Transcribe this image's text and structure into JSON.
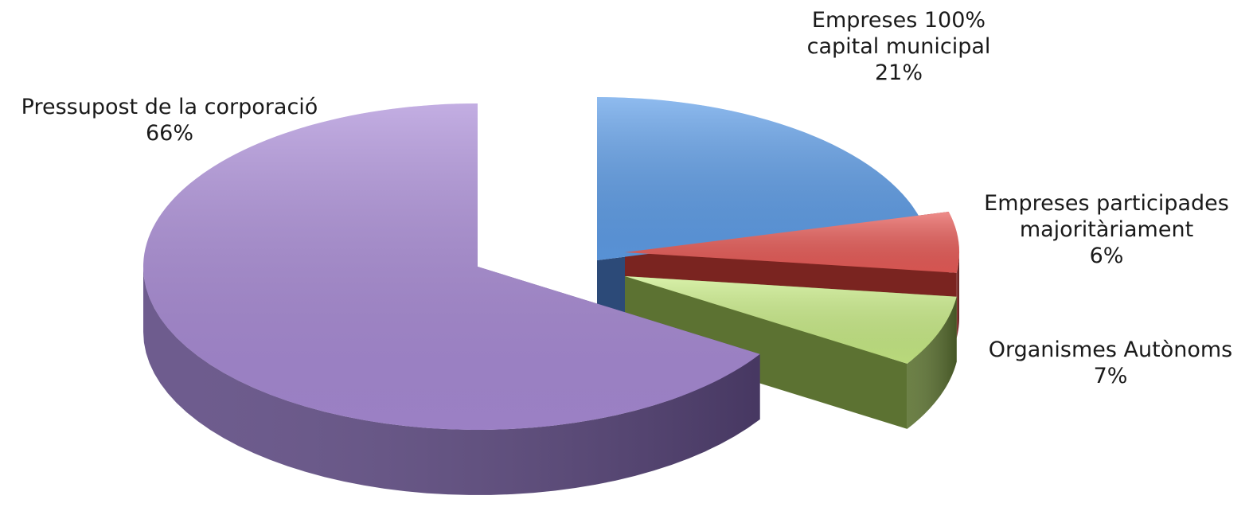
{
  "chart_data": {
    "type": "pie",
    "style": "3d-exploded",
    "title": "",
    "slices": [
      {
        "label_lines": [
          "Empreses 100%",
          "capital municipal"
        ],
        "value": 21,
        "value_label": "21%",
        "color": "#5f9ee8",
        "side_color": "#2c4a78"
      },
      {
        "label_lines": [
          "Empreses participades",
          "majoritàriament"
        ],
        "value": 6,
        "value_label": "6%",
        "color": "#e85c58",
        "side_color": "#7a2420"
      },
      {
        "label_lines": [
          "Organismes Autònoms"
        ],
        "value": 7,
        "value_label": "7%",
        "color": "#c9ec86",
        "side_color": "#5c7232"
      },
      {
        "label_lines": [
          "Pressupost de la corporació"
        ],
        "value": 66,
        "value_label": "66%",
        "color": "#a98bd6",
        "side_color": "#5e4a82"
      }
    ]
  }
}
